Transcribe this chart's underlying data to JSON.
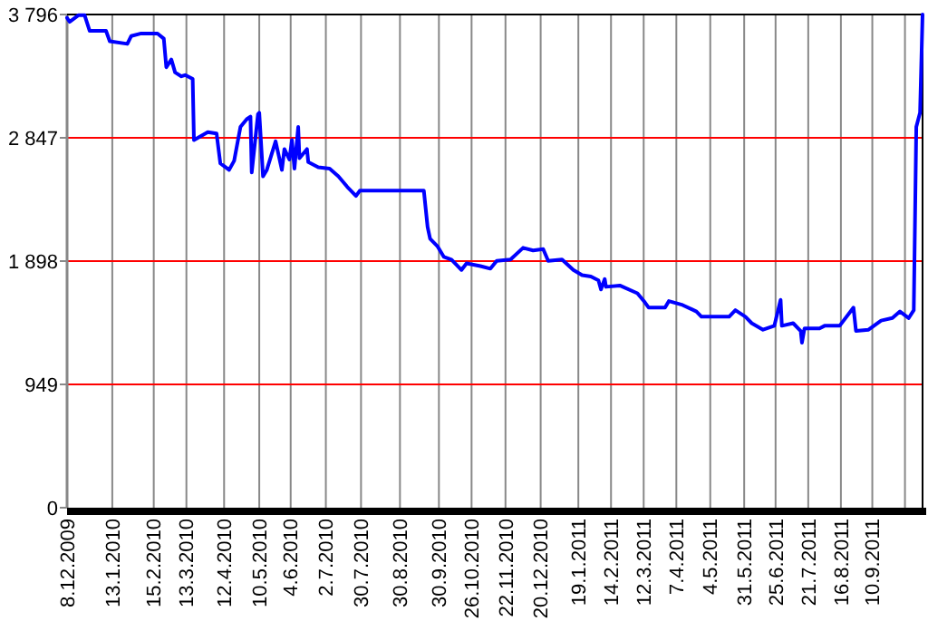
{
  "chart_data": {
    "type": "line",
    "x": [
      "2009-12-08",
      "2009-12-10",
      "2009-12-17",
      "2009-12-22",
      "2009-12-26",
      "2010-01-08",
      "2010-01-11",
      "2010-01-25",
      "2010-01-28",
      "2010-02-05",
      "2010-02-18",
      "2010-02-23",
      "2010-02-25",
      "2010-03-01",
      "2010-03-04",
      "2010-03-09",
      "2010-03-12",
      "2010-03-18",
      "2010-03-19",
      "2010-03-30",
      "2010-04-06",
      "2010-04-09",
      "2010-04-16",
      "2010-04-20",
      "2010-04-25",
      "2010-04-30",
      "2010-05-03",
      "2010-05-04",
      "2010-05-09",
      "2010-05-10",
      "2010-05-13",
      "2010-05-16",
      "2010-05-23",
      "2010-05-28",
      "2010-05-30",
      "2010-06-03",
      "2010-06-05",
      "2010-06-07",
      "2010-06-10",
      "2010-06-11",
      "2010-06-17",
      "2010-06-18",
      "2010-06-26",
      "2010-07-05",
      "2010-07-12",
      "2010-07-19",
      "2010-07-26",
      "2010-07-29",
      "2010-09-18",
      "2010-09-21",
      "2010-09-23",
      "2010-09-29",
      "2010-10-04",
      "2010-10-10",
      "2010-10-18",
      "2010-10-22",
      "2010-11-02",
      "2010-11-10",
      "2010-11-15",
      "2010-11-26",
      "2010-12-06",
      "2010-12-14",
      "2010-12-22",
      "2010-12-26",
      "2011-01-06",
      "2011-01-15",
      "2011-01-22",
      "2011-01-29",
      "2011-02-04",
      "2011-02-06",
      "2011-02-09",
      "2011-02-10",
      "2011-02-21",
      "2011-03-07",
      "2011-03-13",
      "2011-03-16",
      "2011-03-29",
      "2011-04-01",
      "2011-04-12",
      "2011-04-23",
      "2011-04-27",
      "2011-05-19",
      "2011-05-24",
      "2011-06-01",
      "2011-06-06",
      "2011-06-15",
      "2011-06-24",
      "2011-06-29",
      "2011-06-30",
      "2011-07-09",
      "2011-07-15",
      "2011-07-16",
      "2011-07-18",
      "2011-07-30",
      "2011-08-03",
      "2011-08-15",
      "2011-08-26",
      "2011-08-28",
      "2011-09-07",
      "2011-09-17",
      "2011-09-26",
      "2011-10-02",
      "2011-10-09",
      "2011-10-13",
      "2011-10-15",
      "2011-10-18",
      "2011-10-20"
    ],
    "series": [
      {
        "color": "#0000ff",
        "values": [
          3770,
          3740,
          3790,
          3790,
          3670,
          3670,
          3590,
          3570,
          3630,
          3650,
          3650,
          3610,
          3390,
          3450,
          3350,
          3320,
          3330,
          3300,
          2830,
          2890,
          2880,
          2650,
          2600,
          2670,
          2930,
          2990,
          3010,
          2580,
          3030,
          3040,
          2550,
          2600,
          2820,
          2600,
          2760,
          2680,
          2830,
          2610,
          2930,
          2690,
          2760,
          2660,
          2620,
          2610,
          2550,
          2470,
          2400,
          2440,
          2440,
          2160,
          2070,
          2010,
          1930,
          1910,
          1830,
          1880,
          1860,
          1840,
          1900,
          1910,
          2000,
          1980,
          1990,
          1900,
          1910,
          1830,
          1790,
          1780,
          1750,
          1680,
          1760,
          1700,
          1710,
          1650,
          1580,
          1540,
          1540,
          1590,
          1560,
          1510,
          1470,
          1470,
          1520,
          1470,
          1420,
          1370,
          1400,
          1600,
          1400,
          1420,
          1360,
          1270,
          1380,
          1380,
          1400,
          1400,
          1540,
          1360,
          1370,
          1440,
          1460,
          1510,
          1460,
          1520,
          2930,
          3040,
          3796
        ]
      }
    ],
    "xlim": [
      "2009-12-08",
      "2011-10-20"
    ],
    "xticks": [
      {
        "value": "2009-12-08",
        "label": "8.12.2009"
      },
      {
        "value": "2010-01-13",
        "label": "13.1.2010"
      },
      {
        "value": "2010-02-15",
        "label": "15.2.2010"
      },
      {
        "value": "2010-03-13",
        "label": "13.3.2010"
      },
      {
        "value": "2010-04-12",
        "label": "12.4.2010"
      },
      {
        "value": "2010-05-10",
        "label": "10.5.2010"
      },
      {
        "value": "2010-06-04",
        "label": "4.6.2010"
      },
      {
        "value": "2010-07-02",
        "label": "2.7.2010"
      },
      {
        "value": "2010-07-30",
        "label": "30.7.2010"
      },
      {
        "value": "2010-08-30",
        "label": "30.8.2010"
      },
      {
        "value": "2010-09-30",
        "label": "30.9.2010"
      },
      {
        "value": "2010-10-26",
        "label": "26.10.2010"
      },
      {
        "value": "2010-11-22",
        "label": "22.11.2010"
      },
      {
        "value": "2010-12-20",
        "label": "20.12.2010"
      },
      {
        "value": "2011-01-19",
        "label": "19.1.2011"
      },
      {
        "value": "2011-02-14",
        "label": "14.2.2011"
      },
      {
        "value": "2011-03-12",
        "label": "12.3.2011"
      },
      {
        "value": "2011-04-07",
        "label": "7.4.2011"
      },
      {
        "value": "2011-05-04",
        "label": "4.5.2011"
      },
      {
        "value": "2011-05-31",
        "label": "31.5.2011"
      },
      {
        "value": "2011-06-25",
        "label": "25.6.2011"
      },
      {
        "value": "2011-07-21",
        "label": "21.7.2011"
      },
      {
        "value": "2011-08-16",
        "label": "16.8.2011"
      },
      {
        "value": "2011-09-10",
        "label": "10.9.2011"
      },
      {
        "value": "2011-10-06",
        "label": null
      }
    ],
    "ylim": [
      0,
      3796
    ],
    "yticks": [
      0,
      949,
      {
        "value": 1898,
        "label": "1 898"
      },
      {
        "value": 2847,
        "label": "2 847"
      },
      {
        "value": 3796,
        "label": "3 796"
      }
    ],
    "grid": true,
    "marker": "none",
    "line_style": "solid"
  }
}
